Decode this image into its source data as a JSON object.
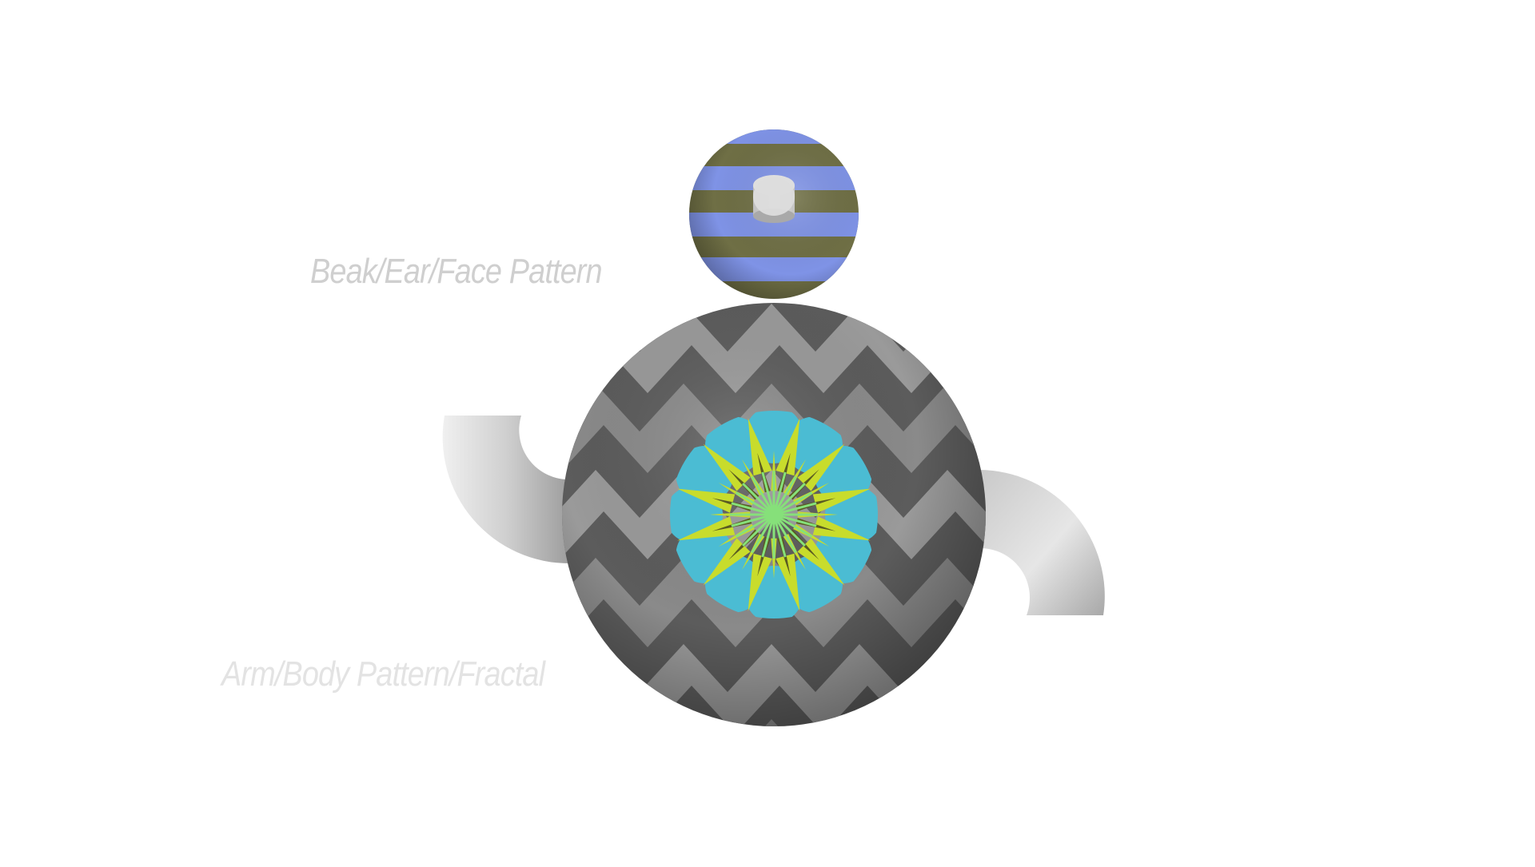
{
  "labels": {
    "face": "Beak/Ear/Face Pattern",
    "body": "Arm/Body Pattern/Fractal"
  },
  "colors": {
    "background": "#ffffff",
    "head_stripe_blue": "#7f93e6",
    "head_stripe_olive": "#6f6f45",
    "body_light": "#9a9a9a",
    "body_dark": "#5a5a5a",
    "fractal_cyan": "#4bbcd3",
    "fractal_yellow": "#c8dc2c",
    "fractal_olive": "#5a5a22",
    "fractal_green": "#86e07a",
    "arm": "#d4d4d4",
    "beak": "#dcdcdc"
  },
  "icons": {
    "head": "striped-sphere",
    "body": "chevron-sphere",
    "fractal": "kaleidoscope-mandala",
    "arms": "curved-tubes"
  }
}
